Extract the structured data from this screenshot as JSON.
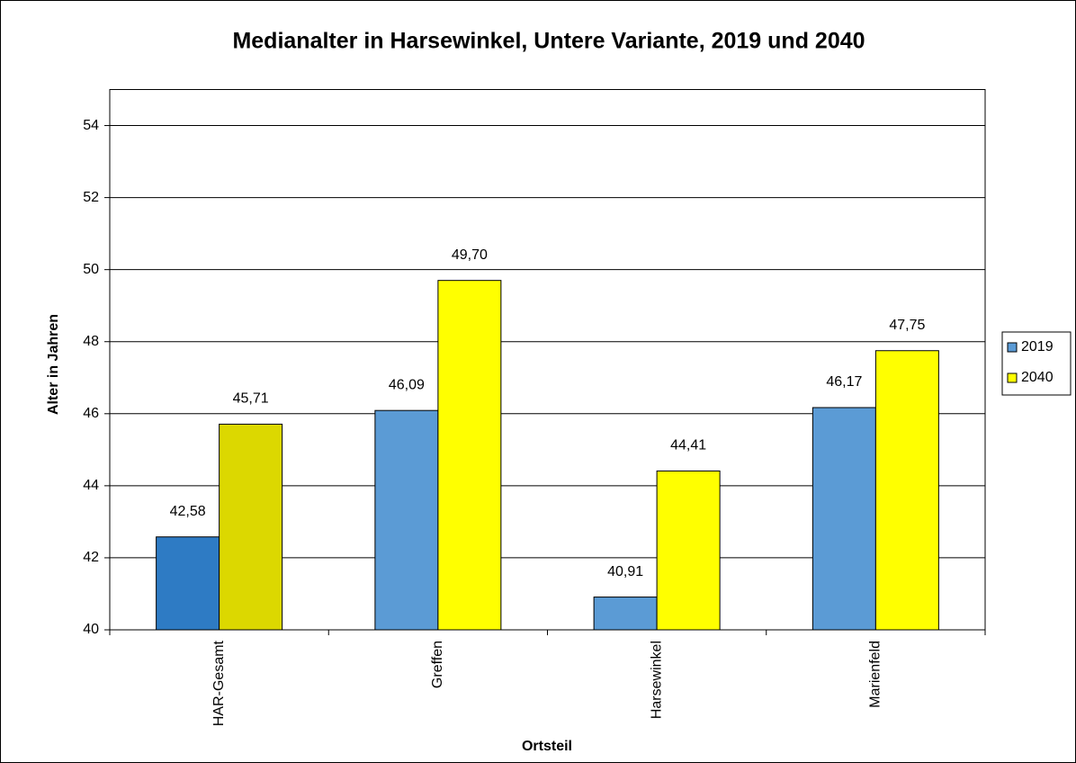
{
  "chart_data": {
    "type": "bar",
    "title": "Medianalter in Harsewinkel, Untere Variante, 2019 und 2040",
    "x_label": "Ortsteil",
    "y_label": "Alter in Jahren",
    "categories": [
      "HAR-Gesamt",
      "Greffen",
      "Harsewinkel",
      "Marienfeld"
    ],
    "series": [
      {
        "name": "2019",
        "color": "#5b9bd5",
        "colors": [
          "#2e7bc4",
          "#5b9bd5",
          "#5b9bd5",
          "#5b9bd5"
        ],
        "values": [
          42.58,
          46.09,
          40.91,
          46.17
        ],
        "value_labels": [
          "42,58",
          "46,09",
          "40,91",
          "46,17"
        ]
      },
      {
        "name": "2040",
        "color": "#ffff00",
        "colors": [
          "#dcd800",
          "#ffff00",
          "#ffff00",
          "#ffff00"
        ],
        "values": [
          45.71,
          49.7,
          44.41,
          47.75
        ],
        "value_labels": [
          "45,71",
          "49,70",
          "44,41",
          "47,75"
        ]
      }
    ],
    "ylim": [
      40,
      55
    ],
    "yticks": [
      40,
      42,
      44,
      46,
      48,
      50,
      52,
      54
    ],
    "grid": true,
    "legend": "right"
  }
}
